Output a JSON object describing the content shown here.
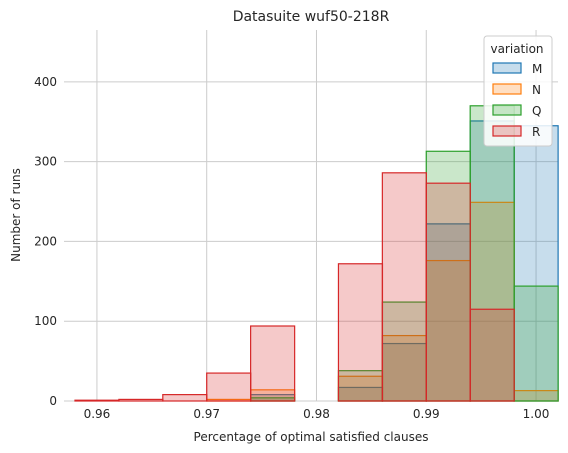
{
  "chart_data": {
    "type": "bar",
    "title": "Datasuite wuf50-218R",
    "xlabel": "Percentage of optimal satisfied clauses",
    "ylabel": "Number of runs",
    "xlim": [
      0.957,
      1.002
    ],
    "ylim": [
      0,
      465
    ],
    "xticks": [
      0.96,
      0.97,
      0.98,
      0.99,
      1.0
    ],
    "xtick_labels": [
      "0.96",
      "0.97",
      "0.98",
      "0.99",
      "1.00"
    ],
    "yticks": [
      0,
      100,
      200,
      300,
      400
    ],
    "ytick_labels": [
      "0",
      "100",
      "200",
      "300",
      "400"
    ],
    "grid": true,
    "bin_width": 0.00401,
    "bins_left": [
      0.958,
      0.962,
      0.966,
      0.97,
      0.974,
      0.978,
      0.982,
      0.986,
      0.99,
      0.994,
      0.998
    ],
    "legend": {
      "title": "variation",
      "position": "top-right"
    },
    "series": [
      {
        "name": "M",
        "color": "#1f77b4",
        "values": [
          0,
          0,
          0,
          0,
          8,
          0,
          17,
          72,
          222,
          351,
          345
        ]
      },
      {
        "name": "N",
        "color": "#ff7f0e",
        "values": [
          0,
          0,
          0,
          2,
          14,
          0,
          31,
          82,
          176,
          249,
          13
        ]
      },
      {
        "name": "Q",
        "color": "#2ca02c",
        "values": [
          0,
          0,
          0,
          0,
          4,
          0,
          38,
          124,
          313,
          370,
          144
        ]
      },
      {
        "name": "R",
        "color": "#d62728",
        "values": [
          1,
          2,
          8,
          35,
          94,
          0,
          172,
          286,
          273,
          115,
          0
        ]
      }
    ]
  }
}
